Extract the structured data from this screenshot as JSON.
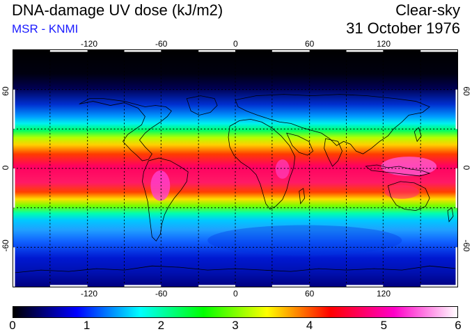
{
  "header": {
    "title": "DNA-damage UV dose (kJ/m2)",
    "source": "MSR - KNMI",
    "condition": "Clear-sky",
    "date": "31 October 1976"
  },
  "map": {
    "longitude_ticks": [
      "-120",
      "-60",
      "0",
      "60",
      "120"
    ],
    "latitude_ticks_left": [
      "60",
      "0",
      "-60"
    ],
    "latitude_ticks_right": [
      "60",
      "0",
      "-60"
    ]
  },
  "colorbar": {
    "min": 0,
    "max": 6,
    "labels": [
      "0",
      "1",
      "2",
      "3",
      "4",
      "5",
      "6"
    ],
    "colors": [
      "#000000",
      "#0000ff",
      "#00ffff",
      "#00ff00",
      "#ffff00",
      "#ff0000",
      "#ff00c8",
      "#ffffff"
    ]
  },
  "colors": {
    "source_text": "#1a1aff"
  }
}
